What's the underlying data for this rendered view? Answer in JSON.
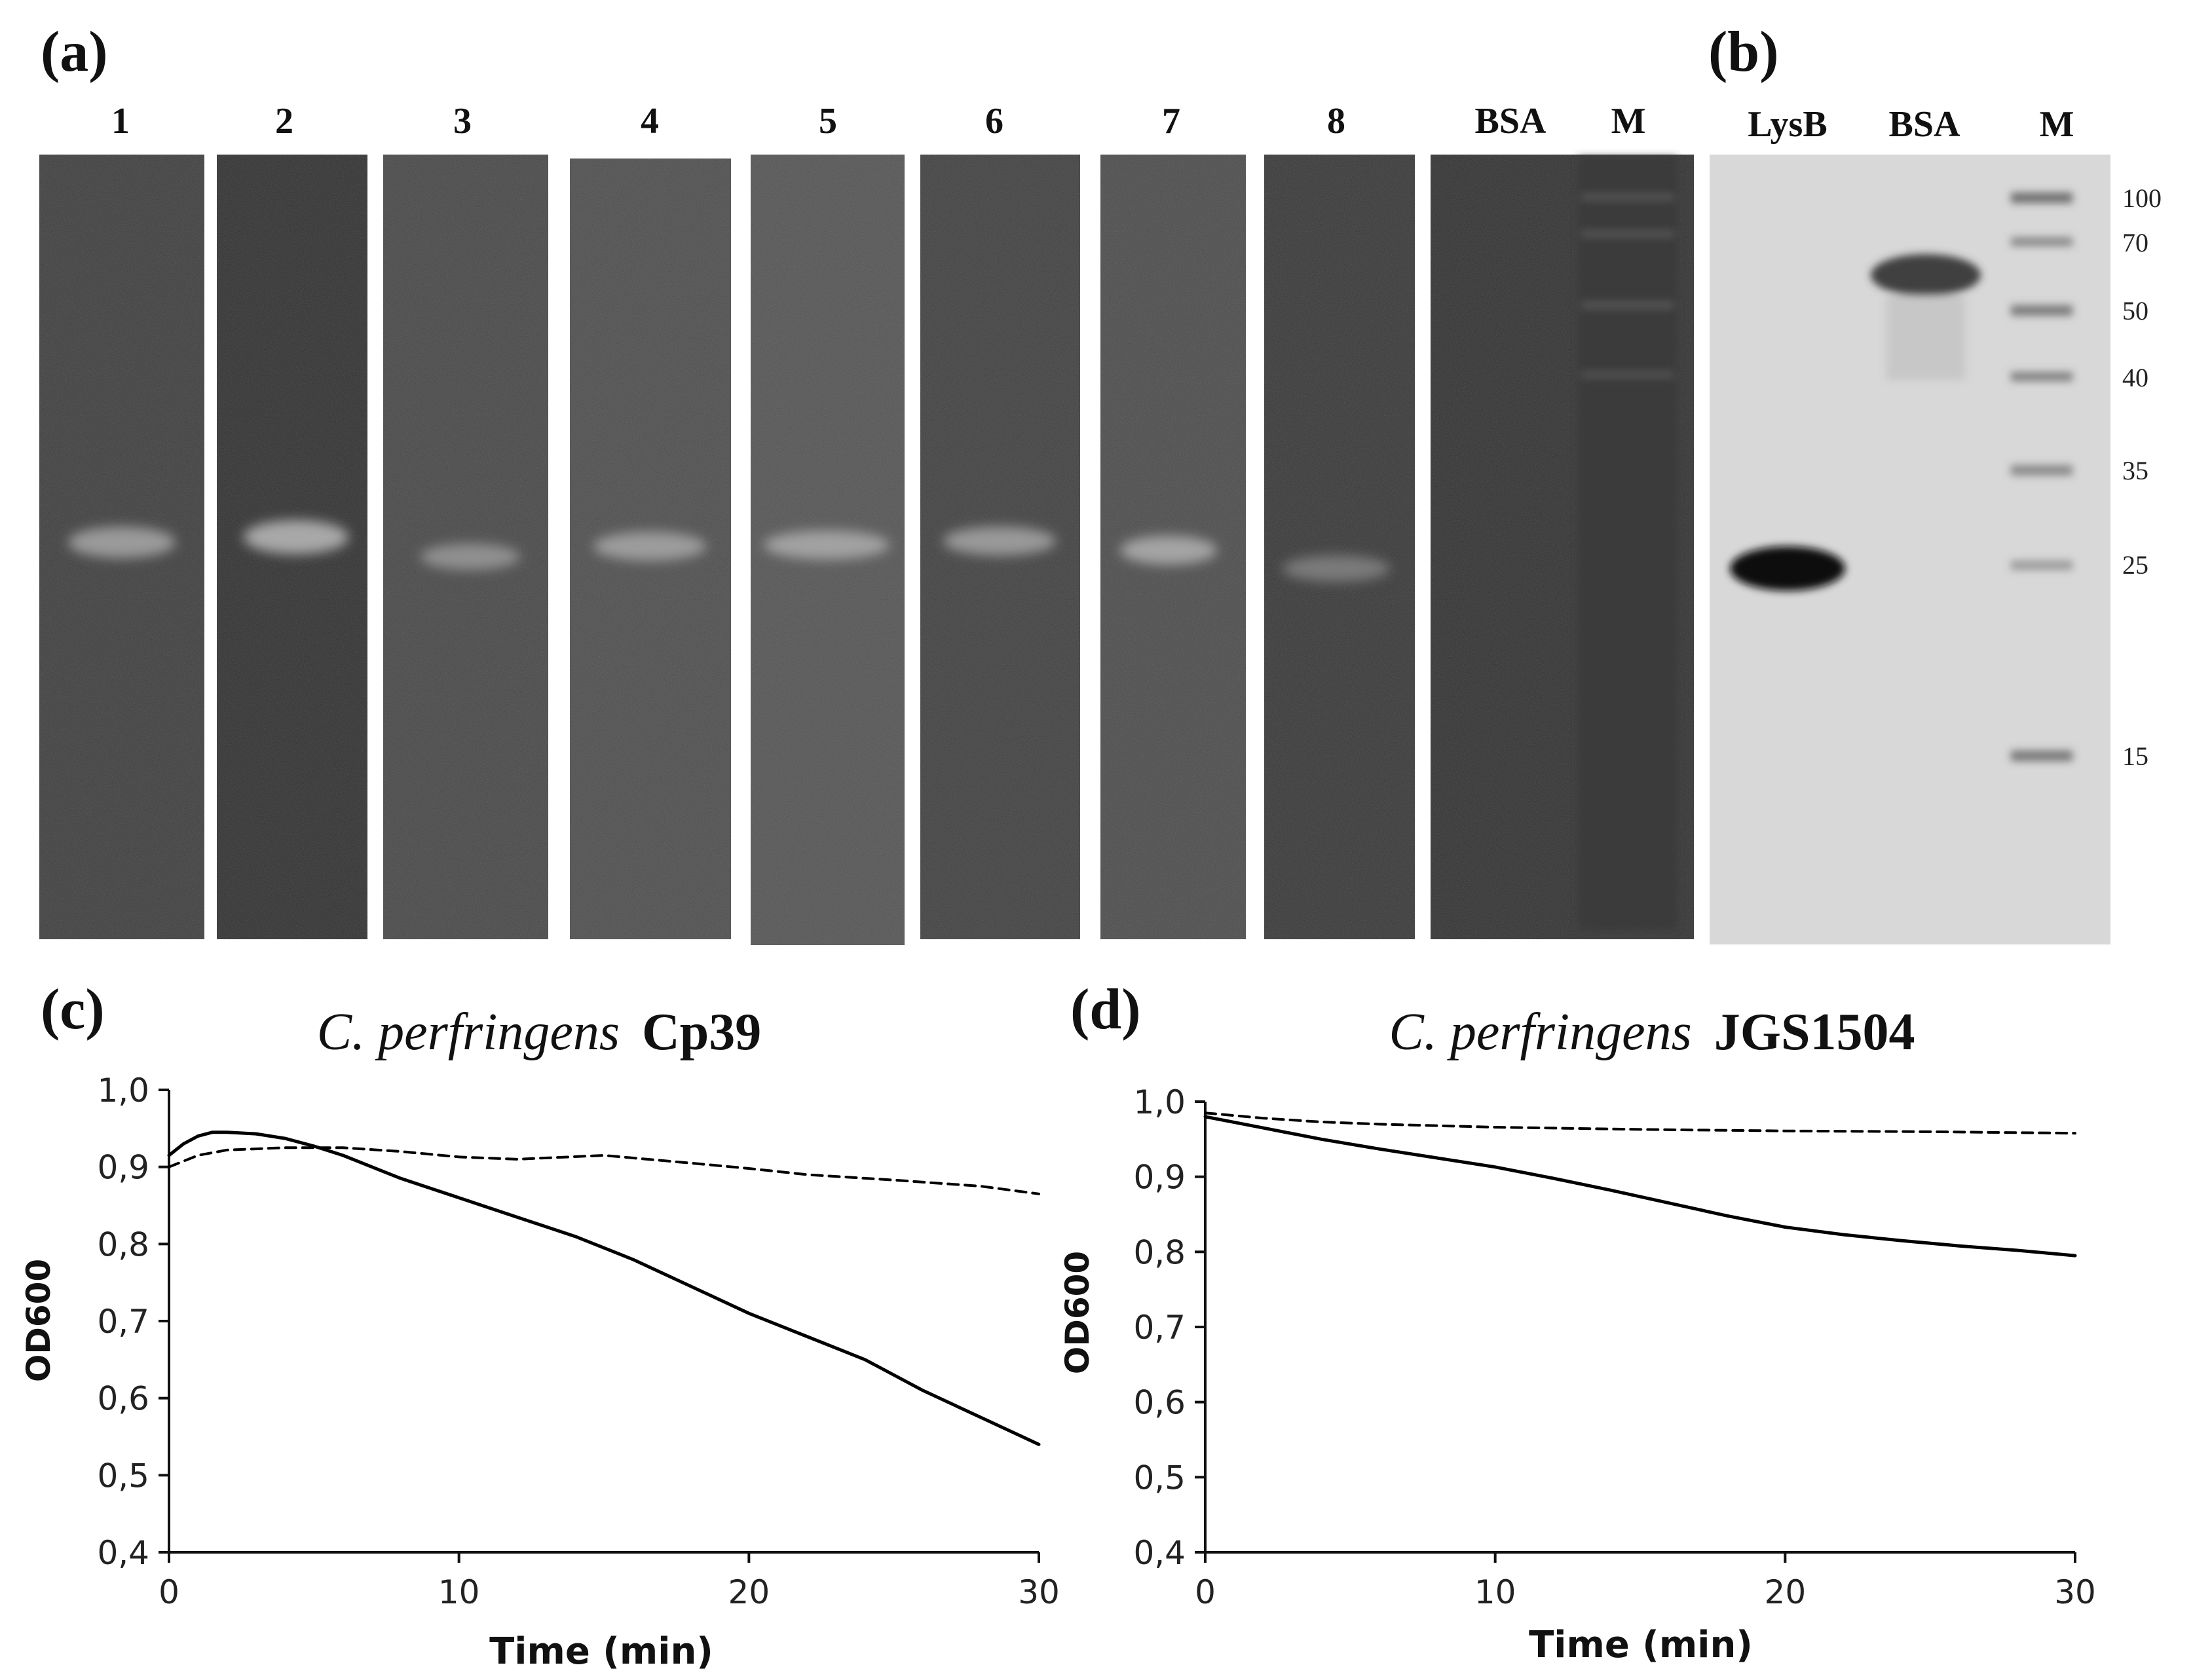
{
  "panels": {
    "a": {
      "label": "(a)",
      "lane_labels": [
        "1",
        "2",
        "3",
        "4",
        "5",
        "6",
        "7",
        "8",
        "BSA",
        "M"
      ]
    },
    "b": {
      "label": "(b)",
      "lane_labels": [
        "LysB",
        "BSA",
        "M"
      ],
      "marker_sizes": [
        "100",
        "70",
        "50",
        "40",
        "35",
        "25",
        "15"
      ]
    }
  },
  "chart_data": [
    {
      "type": "line",
      "panel_label": "(c)",
      "title_italic": "C. perfringens",
      "title_strain": "Cp39",
      "xlabel": "Time (min)",
      "ylabel": "OD600",
      "xlim": [
        0,
        30
      ],
      "ylim": [
        0.4,
        1.0
      ],
      "xticks": [
        "0",
        "10",
        "20",
        "30"
      ],
      "yticks": [
        "0,4",
        "0,5",
        "0,6",
        "0,7",
        "0,8",
        "0,9",
        "1,0"
      ],
      "grid": false,
      "series": [
        {
          "style": "solid",
          "x": [
            0,
            0.5,
            1,
            1.5,
            2,
            3,
            4,
            5,
            6,
            8,
            10,
            12,
            14,
            16,
            18,
            20,
            22,
            24,
            26,
            28,
            30
          ],
          "y": [
            0.915,
            0.93,
            0.94,
            0.945,
            0.945,
            0.943,
            0.937,
            0.927,
            0.915,
            0.885,
            0.86,
            0.835,
            0.81,
            0.78,
            0.745,
            0.71,
            0.68,
            0.65,
            0.61,
            0.575,
            0.54
          ]
        },
        {
          "style": "dashed",
          "x": [
            0,
            1,
            2,
            4,
            6,
            8,
            10,
            12,
            15,
            18,
            20,
            22,
            25,
            28,
            30
          ],
          "y": [
            0.9,
            0.915,
            0.922,
            0.925,
            0.925,
            0.92,
            0.913,
            0.91,
            0.915,
            0.905,
            0.898,
            0.89,
            0.883,
            0.875,
            0.865
          ]
        }
      ]
    },
    {
      "type": "line",
      "panel_label": "(d)",
      "title_italic": "C. perfringens",
      "title_strain": "JGS1504",
      "xlabel": "Time (min)",
      "ylabel": "OD600",
      "xlim": [
        0,
        30
      ],
      "ylim": [
        0.4,
        1.0
      ],
      "xticks": [
        "0",
        "10",
        "20",
        "30"
      ],
      "yticks": [
        "0,4",
        "0,5",
        "0,6",
        "0,7",
        "0,8",
        "0,9",
        "1,0"
      ],
      "grid": false,
      "series": [
        {
          "style": "solid",
          "x": [
            0,
            2,
            4,
            6,
            8,
            10,
            12,
            14,
            16,
            18,
            20,
            22,
            24,
            26,
            28,
            30
          ],
          "y": [
            0.98,
            0.965,
            0.95,
            0.937,
            0.925,
            0.913,
            0.898,
            0.882,
            0.865,
            0.848,
            0.833,
            0.823,
            0.815,
            0.808,
            0.802,
            0.795
          ]
        },
        {
          "style": "dashed",
          "x": [
            0,
            2,
            4,
            6,
            8,
            10,
            15,
            20,
            25,
            30
          ],
          "y": [
            0.985,
            0.978,
            0.973,
            0.97,
            0.968,
            0.966,
            0.963,
            0.961,
            0.96,
            0.958
          ]
        }
      ]
    }
  ]
}
